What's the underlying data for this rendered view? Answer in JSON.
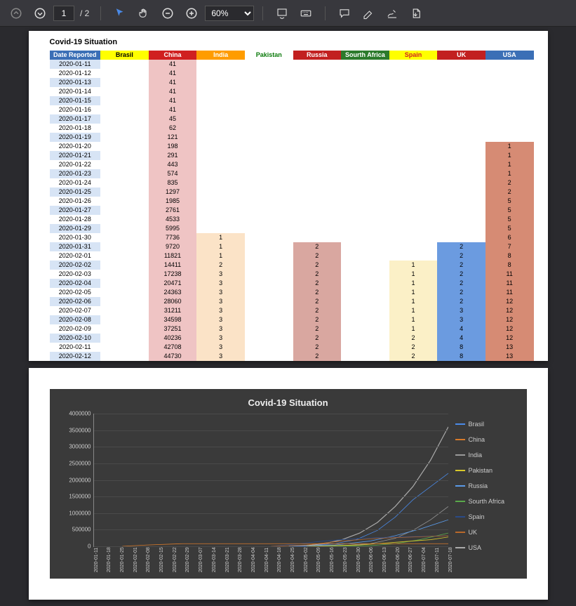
{
  "toolbar": {
    "page_current": "1",
    "page_total": "/ 2",
    "zoom": "60%"
  },
  "doc": {
    "title": "Covid-19 Situation",
    "columns": [
      "Date Reported",
      "Brasil",
      "China",
      "India",
      "Pakistan",
      "Russia",
      "Sourth Africa",
      "Spain",
      "UK",
      "USA"
    ],
    "header_colors": {
      "date": "#3b6fb6",
      "brasil": "#ffff00",
      "china": "#d02020",
      "india": "#ff9c00",
      "pakistan": "#ffffff",
      "russia": "#c22020",
      "sa": "#2c7a2c",
      "spain": "#ffff00",
      "uk": "#c22020",
      "usa": "#3b6fb6"
    },
    "cell_bg_colors": {
      "date_alt": "#d7e4f5",
      "china": "#efc4c4",
      "india": "#fbe3c7",
      "russia": "#d9a7a0",
      "spain": "#fbf0c7",
      "uk": "#6b9be0",
      "usa": "#d68b74"
    },
    "rows": [
      {
        "date": "2020-01-11",
        "china": "41"
      },
      {
        "date": "2020-01-12",
        "china": "41"
      },
      {
        "date": "2020-01-13",
        "china": "41"
      },
      {
        "date": "2020-01-14",
        "china": "41"
      },
      {
        "date": "2020-01-15",
        "china": "41"
      },
      {
        "date": "2020-01-16",
        "china": "41"
      },
      {
        "date": "2020-01-17",
        "china": "45"
      },
      {
        "date": "2020-01-18",
        "china": "62"
      },
      {
        "date": "2020-01-19",
        "china": "121"
      },
      {
        "date": "2020-01-20",
        "china": "198",
        "usa": "1"
      },
      {
        "date": "2020-01-21",
        "china": "291",
        "usa": "1"
      },
      {
        "date": "2020-01-22",
        "china": "443",
        "usa": "1"
      },
      {
        "date": "2020-01-23",
        "china": "574",
        "usa": "1"
      },
      {
        "date": "2020-01-24",
        "china": "835",
        "usa": "2"
      },
      {
        "date": "2020-01-25",
        "china": "1297",
        "usa": "2"
      },
      {
        "date": "2020-01-26",
        "china": "1985",
        "usa": "5"
      },
      {
        "date": "2020-01-27",
        "china": "2761",
        "usa": "5"
      },
      {
        "date": "2020-01-28",
        "china": "4533",
        "usa": "5"
      },
      {
        "date": "2020-01-29",
        "china": "5995",
        "usa": "5"
      },
      {
        "date": "2020-01-30",
        "china": "7736",
        "india": "1",
        "usa": "6"
      },
      {
        "date": "2020-01-31",
        "china": "9720",
        "india": "1",
        "russia": "2",
        "uk": "2",
        "usa": "7"
      },
      {
        "date": "2020-02-01",
        "china": "11821",
        "india": "1",
        "russia": "2",
        "uk": "2",
        "usa": "8"
      },
      {
        "date": "2020-02-02",
        "china": "14411",
        "india": "2",
        "russia": "2",
        "spain": "1",
        "uk": "2",
        "usa": "8"
      },
      {
        "date": "2020-02-03",
        "china": "17238",
        "india": "3",
        "russia": "2",
        "spain": "1",
        "uk": "2",
        "usa": "11"
      },
      {
        "date": "2020-02-04",
        "china": "20471",
        "india": "3",
        "russia": "2",
        "spain": "1",
        "uk": "2",
        "usa": "11"
      },
      {
        "date": "2020-02-05",
        "china": "24363",
        "india": "3",
        "russia": "2",
        "spain": "1",
        "uk": "2",
        "usa": "11"
      },
      {
        "date": "2020-02-06",
        "china": "28060",
        "india": "3",
        "russia": "2",
        "spain": "1",
        "uk": "2",
        "usa": "12"
      },
      {
        "date": "2020-02-07",
        "china": "31211",
        "india": "3",
        "russia": "2",
        "spain": "1",
        "uk": "3",
        "usa": "12"
      },
      {
        "date": "2020-02-08",
        "china": "34598",
        "india": "3",
        "russia": "2",
        "spain": "1",
        "uk": "3",
        "usa": "12"
      },
      {
        "date": "2020-02-09",
        "china": "37251",
        "india": "3",
        "russia": "2",
        "spain": "1",
        "uk": "4",
        "usa": "12"
      },
      {
        "date": "2020-02-10",
        "china": "40236",
        "india": "3",
        "russia": "2",
        "spain": "2",
        "uk": "4",
        "usa": "12"
      },
      {
        "date": "2020-02-11",
        "china": "42708",
        "india": "3",
        "russia": "2",
        "spain": "2",
        "uk": "8",
        "usa": "13"
      },
      {
        "date": "2020-02-12",
        "china": "44730",
        "india": "3",
        "russia": "2",
        "spain": "2",
        "uk": "8",
        "usa": "13"
      }
    ]
  },
  "chart": {
    "title": "Covid-19 Situation",
    "background_color": "#3a3a3a",
    "grid_color": "#4a4a4a",
    "text_color": "#cccccc",
    "ylim": [
      0,
      4000000
    ],
    "ytick_step": 500000,
    "yticks": [
      "0",
      "500000",
      "1000000",
      "1500000",
      "2000000",
      "2500000",
      "3000000",
      "3500000",
      "4000000"
    ],
    "xticks": [
      "2020-01-11",
      "2020-01-18",
      "2020-01-25",
      "2020-02-01",
      "2020-02-08",
      "2020-02-15",
      "2020-02-22",
      "2020-02-29",
      "2020-03-07",
      "2020-03-14",
      "2020-03-21",
      "2020-03-28",
      "2020-04-04",
      "2020-04-11",
      "2020-04-18",
      "2020-04-25",
      "2020-05-02",
      "2020-05-09",
      "2020-05-16",
      "2020-05-23",
      "2020-05-30",
      "2020-06-06",
      "2020-06-13",
      "2020-06-20",
      "2020-06-27",
      "2020-07-04",
      "2020-07-11",
      "2020-07-18"
    ],
    "legend": [
      {
        "label": "Brasil",
        "color": "#4a8ae8"
      },
      {
        "label": "China",
        "color": "#d87a2a"
      },
      {
        "label": "India",
        "color": "#999999"
      },
      {
        "label": "Pakistan",
        "color": "#d8c82a"
      },
      {
        "label": "Russia",
        "color": "#5a9ae8"
      },
      {
        "label": "Sourth Africa",
        "color": "#5aa84a"
      },
      {
        "label": "Spain",
        "color": "#2a4a88"
      },
      {
        "label": "UK",
        "color": "#b8682a"
      },
      {
        "label": "USA",
        "color": "#aaaaaa"
      }
    ],
    "series": {
      "usa": [
        [
          55,
          0
        ],
        [
          60,
          0.5
        ],
        [
          65,
          2
        ],
        [
          70,
          5
        ],
        [
          75,
          10
        ],
        [
          80,
          18
        ],
        [
          85,
          30
        ],
        [
          90,
          45
        ],
        [
          95,
          65
        ],
        [
          100,
          90
        ]
      ],
      "brasil": [
        [
          55,
          0
        ],
        [
          62,
          0.5
        ],
        [
          68,
          2
        ],
        [
          74,
          5
        ],
        [
          80,
          12
        ],
        [
          85,
          22
        ],
        [
          90,
          35
        ],
        [
          95,
          45
        ],
        [
          100,
          55
        ]
      ],
      "india": [
        [
          60,
          0
        ],
        [
          70,
          0.5
        ],
        [
          78,
          2
        ],
        [
          85,
          6
        ],
        [
          90,
          12
        ],
        [
          95,
          20
        ],
        [
          100,
          30
        ]
      ],
      "russia": [
        [
          58,
          0
        ],
        [
          68,
          1
        ],
        [
          78,
          4
        ],
        [
          85,
          8
        ],
        [
          92,
          13
        ],
        [
          100,
          20
        ]
      ],
      "sa": [
        [
          65,
          0
        ],
        [
          78,
          0.5
        ],
        [
          85,
          2
        ],
        [
          92,
          5
        ],
        [
          100,
          10
        ]
      ],
      "spain": [
        [
          50,
          0
        ],
        [
          58,
          2
        ],
        [
          65,
          4
        ],
        [
          75,
          6
        ],
        [
          85,
          7
        ],
        [
          100,
          8
        ]
      ],
      "uk": [
        [
          50,
          0
        ],
        [
          60,
          1
        ],
        [
          70,
          4
        ],
        [
          80,
          6
        ],
        [
          90,
          7
        ],
        [
          100,
          8
        ]
      ],
      "pakistan": [
        [
          60,
          0
        ],
        [
          75,
          1
        ],
        [
          85,
          3
        ],
        [
          95,
          5
        ],
        [
          100,
          7
        ]
      ],
      "china": [
        [
          8,
          0
        ],
        [
          15,
          1
        ],
        [
          25,
          2
        ],
        [
          40,
          2
        ],
        [
          100,
          2
        ]
      ]
    }
  }
}
